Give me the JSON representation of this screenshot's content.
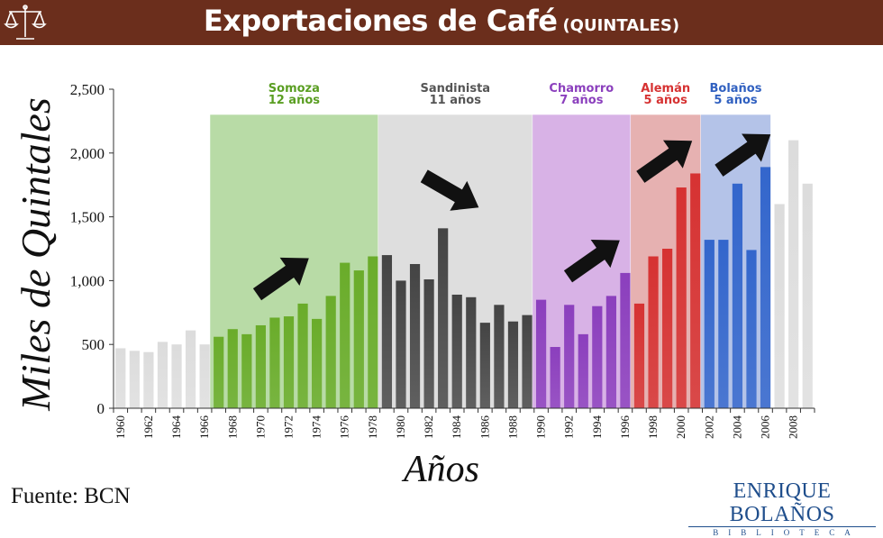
{
  "header": {
    "title": "Exportaciones de Café",
    "subtitle": "(QUINTALES)",
    "logo_icon": "scales-of-justice-icon"
  },
  "footer": {
    "source": "Fuente: BCN",
    "brand_name": "ENRIQUE BOLAÑOS",
    "brand_sub": "BIBLIOTECA"
  },
  "chart_data": {
    "type": "bar",
    "title": "Exportaciones de Café (QUINTALES)",
    "xlabel": "Años",
    "ylabel": "Miles de Quintales",
    "ylim": [
      0,
      2500
    ],
    "yticks": [
      0,
      500,
      1000,
      1500,
      2000,
      2500
    ],
    "ytick_labels": [
      "0",
      "500",
      "1,000",
      "1,500",
      "2,000",
      "2,500"
    ],
    "grid": false,
    "x": [
      1960,
      1961,
      1962,
      1963,
      1964,
      1965,
      1966,
      1967,
      1968,
      1969,
      1970,
      1971,
      1972,
      1973,
      1974,
      1975,
      1976,
      1977,
      1978,
      1979,
      1980,
      1981,
      1982,
      1983,
      1984,
      1985,
      1986,
      1987,
      1988,
      1989,
      1990,
      1991,
      1992,
      1993,
      1994,
      1995,
      1996,
      1997,
      1998,
      1999,
      2000,
      2001,
      2002,
      2003,
      2004,
      2005,
      2006,
      2007,
      2008,
      2009
    ],
    "values": [
      470,
      450,
      440,
      520,
      500,
      610,
      500,
      560,
      620,
      580,
      650,
      710,
      720,
      820,
      700,
      880,
      1140,
      1080,
      1190,
      1200,
      1000,
      1130,
      1010,
      1410,
      890,
      870,
      670,
      810,
      680,
      730,
      850,
      480,
      810,
      580,
      800,
      880,
      1060,
      820,
      1190,
      1250,
      1730,
      1840,
      1320,
      1320,
      1760,
      1240,
      1890,
      1600,
      2100,
      1760
    ],
    "xtick_labels": [
      "1960",
      "1962",
      "1964",
      "1966",
      "1968",
      "1970",
      "1972",
      "1974",
      "1976",
      "1978",
      "1980",
      "1982",
      "1984",
      "1986",
      "1988",
      "1990",
      "1992",
      "1994",
      "1996",
      "1998",
      "2000",
      "2002",
      "2004",
      "2006",
      "2008"
    ],
    "periods": [
      {
        "name": "Somoza",
        "duration": "12 años",
        "start": 1967,
        "end": 1978,
        "color": "#6aac2a",
        "bg": "#b8dba6",
        "label_color": "#5a9e22",
        "trend": "up"
      },
      {
        "name": "Sandinista",
        "duration": "11 años",
        "start": 1979,
        "end": 1989,
        "color": "#444444",
        "bg": "#dedede",
        "label_color": "#555555",
        "trend": "down"
      },
      {
        "name": "Chamorro",
        "duration": "7 años",
        "start": 1990,
        "end": 1996,
        "color": "#8b3fbd",
        "bg": "#d8b2e6",
        "label_color": "#8b3fbd",
        "trend": "up"
      },
      {
        "name": "Alemán",
        "duration": "5 años",
        "start": 1997,
        "end": 2001,
        "color": "#d63232",
        "bg": "#e6b1b1",
        "label_color": "#d63232",
        "trend": "up"
      },
      {
        "name": "Bolaños",
        "duration": "5 años",
        "start": 2002,
        "end": 2006,
        "color": "#3366cc",
        "bg": "#b4c3e8",
        "label_color": "#3060c0",
        "trend": "up"
      }
    ],
    "default_bar_color": "#dcdcdc"
  }
}
